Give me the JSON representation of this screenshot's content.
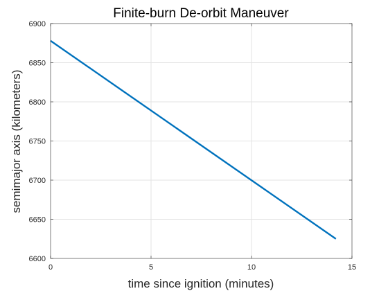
{
  "chart_data": {
    "type": "line",
    "title": "Finite-burn De-orbit Maneuver",
    "xlabel": "time since ignition (minutes)",
    "ylabel": "semimajor axis (kilometers)",
    "xlim": [
      0,
      15
    ],
    "ylim": [
      6600,
      6900
    ],
    "xticks": [
      "0",
      "5",
      "10",
      "15"
    ],
    "yticks": [
      "6600",
      "6650",
      "6700",
      "6750",
      "6800",
      "6850",
      "6900"
    ],
    "grid": true,
    "box": true,
    "series": [
      {
        "color": "#0072BD",
        "x": [
          0,
          14.2
        ],
        "y": [
          6878,
          6625
        ]
      }
    ]
  }
}
